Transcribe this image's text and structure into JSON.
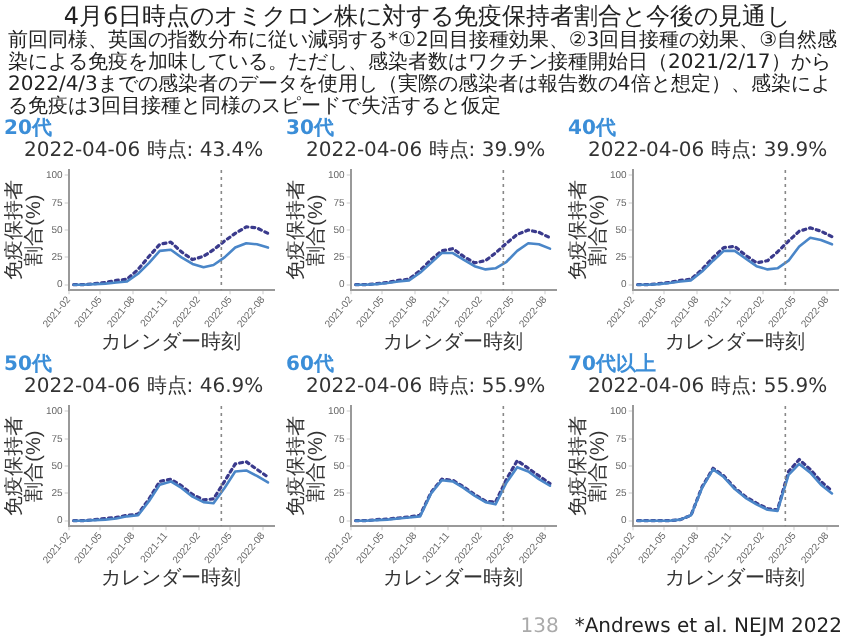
{
  "chart_data": [
    {
      "type": "line",
      "title": "20代",
      "subtitle": "2022-04-06 時点: 43.4%",
      "xlabel": "カレンダー時刻",
      "ylabel": "免疫保持者割合(%)",
      "x": [
        "2021-02-15",
        "2021-03-15",
        "2021-04-15",
        "2021-05-15",
        "2021-06-15",
        "2021-07-15",
        "2021-08-15",
        "2021-09-15",
        "2021-10-15",
        "2021-11-15",
        "2021-12-15",
        "2022-01-15",
        "2022-02-15",
        "2022-03-15",
        "2022-04-15",
        "2022-05-15",
        "2022-06-15",
        "2022-07-15",
        "2022-08-15"
      ],
      "xlim": [
        "2021-02",
        "2022-09"
      ],
      "xticks": [
        "2021-02",
        "2021-05",
        "2021-08",
        "2021-11",
        "2022-02",
        "2022-05",
        "2022-08"
      ],
      "ylim": [
        -5,
        105
      ],
      "yticks": [
        0,
        25,
        50,
        75,
        100
      ],
      "ref_lines": [
        {
          "axis": "x",
          "value": "2022-04-06",
          "color": "#888888",
          "line_style": "dotted"
        }
      ],
      "series": [
        {
          "color": "#4a86c8",
          "line_style": "solid",
          "values": [
            0,
            0,
            0.5,
            1,
            2,
            3,
            10,
            20,
            31,
            32,
            25,
            19,
            16,
            18,
            25,
            34,
            38,
            37,
            34
          ]
        },
        {
          "color": "#3a3a8c",
          "line_style": "dotted",
          "values": [
            0,
            0,
            1,
            2,
            4,
            5,
            14,
            26,
            37,
            39,
            30,
            23,
            26,
            32,
            40,
            47,
            53,
            52,
            47
          ]
        }
      ],
      "annotations": [
        "4月6日時点のオミクロン株に対する免疫保持者割合と今後の見通し",
        "前回同様、英国の指数分布に従い減弱する*①2回目接種効果、②3回目接種の効果、③自然感染による免疫を加味している。ただし、感染者数はワクチン接種開始日（2021/2/17）から2022/4/3までの感染者のデータを使用し（実際の感染者は報告数の4倍と想定）、感染による免疫は3回目接種と同様のスピードで失活すると仮定"
      ]
    },
    {
      "type": "line",
      "title": "30代",
      "subtitle": "2022-04-06 時点: 39.9%",
      "xlabel": "カレンダー時刻",
      "ylabel": "免疫保持者割合(%)",
      "x": [
        "2021-02-15",
        "2021-03-15",
        "2021-04-15",
        "2021-05-15",
        "2021-06-15",
        "2021-07-15",
        "2021-08-15",
        "2021-09-15",
        "2021-10-15",
        "2021-11-15",
        "2021-12-15",
        "2022-01-15",
        "2022-02-15",
        "2022-03-15",
        "2022-04-15",
        "2022-05-15",
        "2022-06-15",
        "2022-07-15",
        "2022-08-15"
      ],
      "xlim": [
        "2021-02",
        "2022-09"
      ],
      "xticks": [
        "2021-02",
        "2021-05",
        "2021-08",
        "2021-11",
        "2022-02",
        "2022-05",
        "2022-08"
      ],
      "ylim": [
        -5,
        105
      ],
      "yticks": [
        0,
        25,
        50,
        75,
        100
      ],
      "ref_lines": [
        {
          "axis": "x",
          "value": "2022-04-06",
          "color": "#888888",
          "line_style": "dotted"
        }
      ],
      "series": [
        {
          "color": "#4a86c8",
          "line_style": "solid",
          "values": [
            0,
            0,
            0.5,
            1.5,
            3,
            4,
            11,
            20,
            29,
            29,
            23,
            17,
            14,
            15,
            21,
            31,
            38,
            37,
            33
          ]
        },
        {
          "color": "#3a3a8c",
          "line_style": "dotted",
          "values": [
            0,
            0,
            1,
            2,
            4,
            5,
            13,
            23,
            31,
            33,
            26,
            20,
            22,
            29,
            38,
            46,
            50,
            48,
            43
          ]
        }
      ]
    },
    {
      "type": "line",
      "title": "40代",
      "subtitle": "2022-04-06 時点: 39.9%",
      "xlabel": "カレンダー時刻",
      "ylabel": "免疫保持者割合(%)",
      "x": [
        "2021-02-15",
        "2021-03-15",
        "2021-04-15",
        "2021-05-15",
        "2021-06-15",
        "2021-07-15",
        "2021-08-15",
        "2021-09-15",
        "2021-10-15",
        "2021-11-15",
        "2021-12-15",
        "2022-01-15",
        "2022-02-15",
        "2022-03-15",
        "2022-04-15",
        "2022-05-15",
        "2022-06-15",
        "2022-07-15",
        "2022-08-15"
      ],
      "xlim": [
        "2021-02",
        "2022-09"
      ],
      "xticks": [
        "2021-02",
        "2021-05",
        "2021-08",
        "2021-11",
        "2022-02",
        "2022-05",
        "2022-08"
      ],
      "ylim": [
        -5,
        105
      ],
      "yticks": [
        0,
        25,
        50,
        75,
        100
      ],
      "ref_lines": [
        {
          "axis": "x",
          "value": "2022-04-06",
          "color": "#888888",
          "line_style": "dotted"
        }
      ],
      "series": [
        {
          "color": "#4a86c8",
          "line_style": "solid",
          "values": [
            0,
            0,
            0.5,
            1.5,
            3,
            4,
            12,
            22,
            31,
            31,
            24,
            17,
            14,
            15,
            22,
            35,
            43,
            41,
            37
          ]
        },
        {
          "color": "#3a3a8c",
          "line_style": "dotted",
          "values": [
            0,
            0,
            1,
            2,
            4,
            5,
            14,
            25,
            34,
            35,
            27,
            20,
            22,
            30,
            40,
            49,
            52,
            49,
            44
          ]
        }
      ]
    },
    {
      "type": "line",
      "title": "50代",
      "subtitle": "2022-04-06 時点: 46.9%",
      "xlabel": "カレンダー時刻",
      "ylabel": "免疫保持者割合(%)",
      "x": [
        "2021-02-15",
        "2021-03-15",
        "2021-04-15",
        "2021-05-15",
        "2021-06-15",
        "2021-07-15",
        "2021-08-15",
        "2021-09-15",
        "2021-10-15",
        "2021-11-15",
        "2021-12-15",
        "2022-01-15",
        "2022-02-15",
        "2022-03-15",
        "2022-04-15",
        "2022-05-15",
        "2022-06-15",
        "2022-07-15",
        "2022-08-15"
      ],
      "xlim": [
        "2021-02",
        "2022-09"
      ],
      "xticks": [
        "2021-02",
        "2021-05",
        "2021-08",
        "2021-11",
        "2022-02",
        "2022-05",
        "2022-08"
      ],
      "ylim": [
        -5,
        105
      ],
      "yticks": [
        0,
        25,
        50,
        75,
        100
      ],
      "ref_lines": [
        {
          "axis": "x",
          "value": "2022-04-06",
          "color": "#888888",
          "line_style": "dotted"
        }
      ],
      "series": [
        {
          "color": "#4a86c8",
          "line_style": "solid",
          "values": [
            0,
            0,
            0.5,
            1,
            2,
            4,
            5,
            18,
            33,
            36,
            30,
            22,
            17,
            16,
            30,
            45,
            46,
            41,
            35
          ]
        },
        {
          "color": "#3a3a8c",
          "line_style": "dotted",
          "values": [
            0,
            0,
            1,
            2,
            3,
            5,
            6,
            20,
            36,
            38,
            32,
            24,
            19,
            20,
            36,
            52,
            54,
            47,
            40
          ]
        }
      ]
    },
    {
      "type": "line",
      "title": "60代",
      "subtitle": "2022-04-06 時点: 55.9%",
      "xlabel": "カレンダー時刻",
      "ylabel": "免疫保持者割合(%)",
      "x": [
        "2021-02-15",
        "2021-03-15",
        "2021-04-15",
        "2021-05-15",
        "2021-06-15",
        "2021-07-15",
        "2021-08-15",
        "2021-09-15",
        "2021-10-15",
        "2021-11-15",
        "2021-12-15",
        "2022-01-15",
        "2022-02-15",
        "2022-03-15",
        "2022-04-15",
        "2022-05-15",
        "2022-06-15",
        "2022-07-15",
        "2022-08-15"
      ],
      "xlim": [
        "2021-02",
        "2022-09"
      ],
      "xticks": [
        "2021-02",
        "2021-05",
        "2021-08",
        "2021-11",
        "2022-02",
        "2022-05",
        "2022-08"
      ],
      "ylim": [
        -5,
        105
      ],
      "yticks": [
        0,
        25,
        50,
        75,
        100
      ],
      "ref_lines": [
        {
          "axis": "x",
          "value": "2022-04-06",
          "color": "#888888",
          "line_style": "dotted"
        }
      ],
      "series": [
        {
          "color": "#4a86c8",
          "line_style": "solid",
          "values": [
            0,
            0,
            0.5,
            1,
            2,
            3,
            4,
            25,
            37,
            36,
            30,
            23,
            17,
            15,
            35,
            49,
            45,
            38,
            32
          ]
        },
        {
          "color": "#3a3a8c",
          "line_style": "dotted",
          "values": [
            0,
            0,
            1,
            1.5,
            2.5,
            3.5,
            5,
            26,
            38,
            37,
            31,
            24,
            18,
            17,
            38,
            55,
            48,
            41,
            34
          ]
        }
      ]
    },
    {
      "type": "line",
      "title": "70代以上",
      "subtitle": "2022-04-06 時点: 55.9%",
      "xlabel": "カレンダー時刻",
      "ylabel": "免疫保持者割合(%)",
      "x": [
        "2021-02-15",
        "2021-03-15",
        "2021-04-15",
        "2021-05-15",
        "2021-06-15",
        "2021-07-15",
        "2021-08-15",
        "2021-09-15",
        "2021-10-15",
        "2021-11-15",
        "2021-12-15",
        "2022-01-15",
        "2022-02-15",
        "2022-03-15",
        "2022-04-15",
        "2022-05-15",
        "2022-06-15",
        "2022-07-15",
        "2022-08-15"
      ],
      "xlim": [
        "2021-02",
        "2022-09"
      ],
      "xticks": [
        "2021-02",
        "2021-05",
        "2021-08",
        "2021-11",
        "2022-02",
        "2022-05",
        "2022-08"
      ],
      "ylim": [
        -5,
        105
      ],
      "yticks": [
        0,
        25,
        50,
        75,
        100
      ],
      "ref_lines": [
        {
          "axis": "x",
          "value": "2022-04-06",
          "color": "#888888",
          "line_style": "dotted"
        }
      ],
      "series": [
        {
          "color": "#4a86c8",
          "line_style": "solid",
          "values": [
            0,
            0,
            0,
            0,
            1,
            5,
            30,
            47,
            40,
            29,
            21,
            15,
            10,
            9,
            42,
            52,
            44,
            33,
            25
          ]
        },
        {
          "color": "#3a3a8c",
          "line_style": "dotted",
          "values": [
            0,
            0,
            0,
            0,
            1,
            5,
            31,
            48,
            41,
            30,
            22,
            16,
            11,
            10,
            45,
            56,
            47,
            36,
            27
          ]
        }
      ],
      "annotations": [
        "138",
        "*Andrews et al. NEJM 2022"
      ]
    }
  ]
}
